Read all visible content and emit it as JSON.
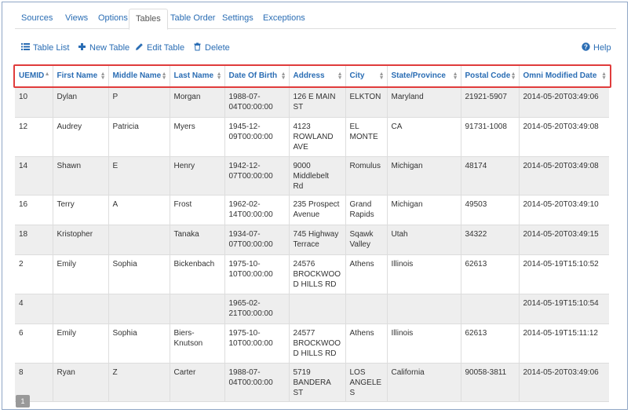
{
  "tabs": [
    {
      "label": "Sources"
    },
    {
      "label": "Views"
    },
    {
      "label": "Options"
    },
    {
      "label": "Tables"
    },
    {
      "label": "Table Order"
    },
    {
      "label": "Settings"
    },
    {
      "label": "Exceptions"
    }
  ],
  "active_tab": "Tables",
  "toolbar": {
    "table_list": "Table List",
    "new_table": "New Table",
    "edit_table": "Edit Table",
    "delete": "Delete",
    "help": "Help"
  },
  "columns": [
    {
      "label": "UEMID",
      "sort": "ascending"
    },
    {
      "label": "First Name"
    },
    {
      "label": "Middle Name"
    },
    {
      "label": "Last Name"
    },
    {
      "label": "Date Of Birth"
    },
    {
      "label": "Address"
    },
    {
      "label": "City"
    },
    {
      "label": "State/Province"
    },
    {
      "label": "Postal Code"
    },
    {
      "label": "Omni Modified Date"
    }
  ],
  "rows": [
    [
      "10",
      "Dylan",
      "P",
      "Morgan",
      "1988-07-04T00:00:00",
      "126 E MAIN ST",
      "ELKTON",
      "Maryland",
      "21921-5907",
      "2014-05-20T03:49:06"
    ],
    [
      "12",
      "Audrey",
      "Patricia",
      "Myers",
      "1945-12-09T00:00:00",
      "4123 ROWLAND AVE",
      "EL MONTE",
      "CA",
      "91731-1008",
      "2014-05-20T03:49:08"
    ],
    [
      "14",
      "Shawn",
      "E",
      "Henry",
      "1942-12-07T00:00:00",
      "9000 Middlebelt Rd",
      "Romulus",
      "Michigan",
      "48174",
      "2014-05-20T03:49:08"
    ],
    [
      "16",
      "Terry",
      "A",
      "Frost",
      "1962-02-14T00:00:00",
      "235 Prospect Avenue",
      "Grand Rapids",
      "Michigan",
      "49503",
      "2014-05-20T03:49:10"
    ],
    [
      "18",
      "Kristopher",
      "",
      "Tanaka",
      "1934-07-07T00:00:00",
      "745 Highway Terrace",
      "Sqawk Valley",
      "Utah",
      "34322",
      "2014-05-20T03:49:15"
    ],
    [
      "2",
      "Emily",
      "Sophia",
      "Bickenbach",
      "1975-10-10T00:00:00",
      "24576 BROCKWOOD HILLS RD",
      "Athens",
      "Illinois",
      "62613",
      "2014-05-19T15:10:52"
    ],
    [
      "4",
      "",
      "",
      "",
      "1965-02-21T00:00:00",
      "",
      "",
      "",
      "",
      "2014-05-19T15:10:54"
    ],
    [
      "6",
      "Emily",
      "Sophia",
      "Biers-Knutson",
      "1975-10-10T00:00:00",
      "24577 BROCKWOOD HILLS RD",
      "Athens",
      "Illinois",
      "62613",
      "2014-05-19T15:11:12"
    ],
    [
      "8",
      "Ryan",
      "Z",
      "Carter",
      "1988-07-04T00:00:00",
      "5719 BANDERA ST",
      "LOS ANGELES",
      "California",
      "90058-3811",
      "2014-05-20T03:49:06"
    ]
  ],
  "pagination": {
    "current_page": "1"
  },
  "colors": {
    "link": "#2a6db4",
    "highlight_border": "#e03c3c",
    "stripe": "#eeeeee"
  }
}
